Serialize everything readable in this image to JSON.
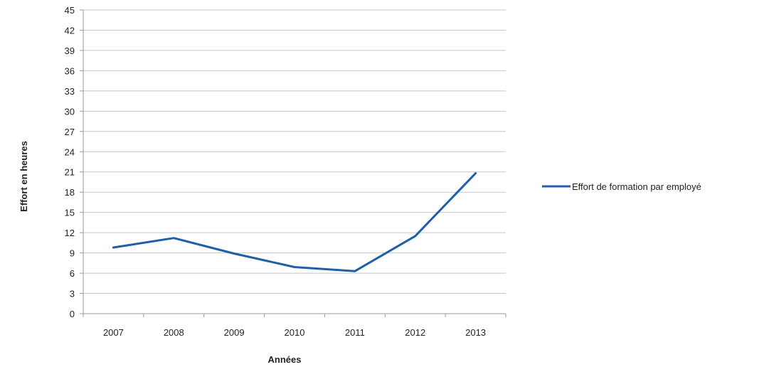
{
  "chart_data": {
    "type": "line",
    "categories": [
      "2007",
      "2008",
      "2009",
      "2010",
      "2011",
      "2012",
      "2013"
    ],
    "series": [
      {
        "name": "Effort de formation par employé",
        "values": [
          9.8,
          11.2,
          8.9,
          6.9,
          6.3,
          11.5,
          20.8
        ],
        "color": "#1f5fa8"
      }
    ],
    "xlabel": "Années",
    "ylabel": "Effort en heures",
    "ylim": [
      0,
      45
    ],
    "yticks": [
      0,
      3,
      6,
      9,
      12,
      15,
      18,
      21,
      24,
      27,
      30,
      33,
      36,
      39,
      42,
      45
    ],
    "grid": true,
    "legend_position": "right"
  }
}
